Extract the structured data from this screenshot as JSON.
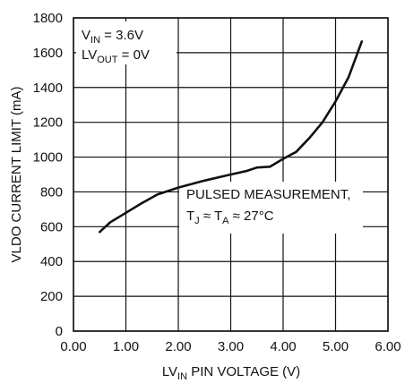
{
  "chart_data": {
    "type": "line",
    "xlabel": {
      "main": "LV",
      "sub": "IN",
      "rest": " PIN VOLTAGE (V)"
    },
    "ylabel": "VLDO CURRENT LIMIT (mA)",
    "xlim": [
      0,
      6
    ],
    "ylim": [
      0,
      1800
    ],
    "x_ticks": [
      "0.00",
      "1.00",
      "2.00",
      "3.00",
      "4.00",
      "5.00",
      "6.00"
    ],
    "y_ticks": [
      "0",
      "200",
      "400",
      "600",
      "800",
      "1000",
      "1200",
      "1400",
      "1600",
      "1800"
    ],
    "grid": true,
    "annotations": {
      "vin": {
        "main": "V",
        "sub": "IN",
        "rest": " = 3.6V"
      },
      "lvout": {
        "main": "LV",
        "sub": "OUT",
        "rest": " = 0V"
      },
      "pulsed_line1": "PULSED MEASUREMENT,",
      "pulsed_line2": {
        "t1": "T",
        "s1": "J",
        "mid": " ≈ T",
        "s2": "A",
        "rest": " ≈ 27°C"
      }
    },
    "series": [
      {
        "x": [
          0.5,
          0.7,
          1.0,
          1.3,
          1.6,
          2.0,
          2.5,
          3.0,
          3.3,
          3.5,
          3.75,
          4.0,
          4.25,
          4.5,
          4.75,
          5.0,
          5.25,
          5.5
        ],
        "y": [
          570,
          625,
          680,
          735,
          785,
          825,
          865,
          900,
          920,
          940,
          945,
          990,
          1030,
          1110,
          1200,
          1320,
          1460,
          1665
        ]
      }
    ]
  }
}
